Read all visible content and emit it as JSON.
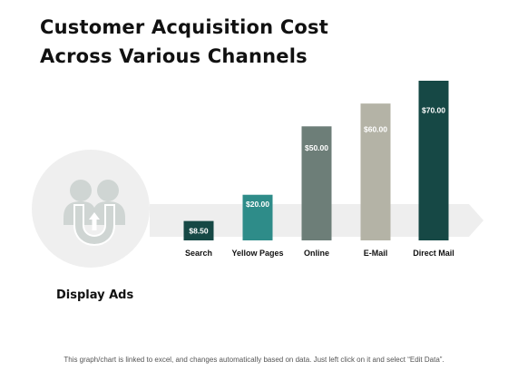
{
  "title_line1": "Customer Acquisition Cost",
  "title_line2": "Across Various Channels",
  "icon_label": "Display Ads",
  "footer_note": "This graph/chart is linked to excel, and changes automatically based on data. Just left click on it and select “Edit Data”.",
  "colors": {
    "band": "#eeeeee",
    "circle": "#efefef",
    "icon": "#cfd5d3"
  },
  "icon": "users-with-magnet-icon",
  "chart_data": {
    "type": "bar",
    "title": "",
    "xlabel": "",
    "ylabel": "",
    "ylim": [
      0,
      70
    ],
    "grid": false,
    "categories": [
      "Search",
      "Yellow Pages",
      "Online",
      "E-Mail",
      "Direct Mail"
    ],
    "values": [
      8.5,
      20,
      50,
      60,
      70
    ],
    "value_labels": [
      "$8.50",
      "$20.00",
      "$50.00",
      "$60.00",
      "$70.00"
    ],
    "colors": [
      "#164845",
      "#2e8c89",
      "#6d7e78",
      "#b4b3a6",
      "#164845"
    ]
  }
}
